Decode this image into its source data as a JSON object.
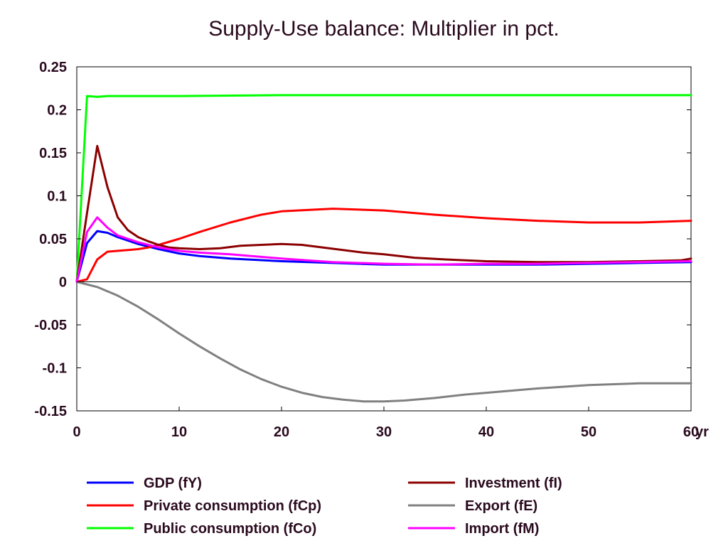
{
  "chart_data": {
    "type": "line",
    "title": "Supply-Use balance: Multiplier in pct.",
    "x_unit_label": "yr",
    "xlim": [
      0,
      60
    ],
    "ylim": [
      -0.15,
      0.25
    ],
    "x_ticks": [
      0,
      10,
      20,
      30,
      40,
      50,
      60
    ],
    "x_tick_labels": [
      "0",
      "10",
      "20",
      "30",
      "40",
      "50",
      "60"
    ],
    "y_ticks": [
      0.25,
      0.2,
      0.15,
      0.1,
      0.05,
      0,
      -0.05,
      -0.1,
      -0.15
    ],
    "y_tick_labels": [
      "0.25",
      "0.2",
      "0.15",
      "0.1",
      "0.05",
      "0",
      "-0.05",
      "-0.1",
      "-0.15"
    ],
    "grid": false,
    "zero_line": true,
    "legend_position": "bottom",
    "series": [
      {
        "name": "GDP (fY)",
        "color": "#0000ff",
        "x": [
          0,
          1,
          2,
          3,
          4,
          5,
          6,
          8,
          10,
          12,
          15,
          20,
          25,
          30,
          35,
          40,
          45,
          50,
          55,
          60
        ],
        "y": [
          0,
          0.045,
          0.059,
          0.057,
          0.052,
          0.048,
          0.044,
          0.038,
          0.033,
          0.03,
          0.027,
          0.024,
          0.022,
          0.02,
          0.02,
          0.02,
          0.02,
          0.021,
          0.022,
          0.023
        ]
      },
      {
        "name": "Private consumption (fCp)",
        "color": "#ff0000",
        "x": [
          0,
          1,
          2,
          3,
          4,
          5,
          6,
          7,
          8,
          10,
          12,
          15,
          18,
          20,
          25,
          30,
          35,
          40,
          45,
          50,
          55,
          60
        ],
        "y": [
          0,
          0.003,
          0.026,
          0.035,
          0.036,
          0.037,
          0.038,
          0.04,
          0.043,
          0.05,
          0.058,
          0.069,
          0.078,
          0.082,
          0.085,
          0.083,
          0.078,
          0.074,
          0.071,
          0.069,
          0.069,
          0.071
        ]
      },
      {
        "name": "Public consumption (fCo)",
        "color": "#00ff00",
        "x": [
          0,
          1,
          2,
          3,
          5,
          10,
          20,
          30,
          40,
          50,
          60
        ],
        "y": [
          0,
          0.216,
          0.215,
          0.216,
          0.216,
          0.216,
          0.217,
          0.217,
          0.217,
          0.217,
          0.217
        ]
      },
      {
        "name": "Investment (fI)",
        "color": "#8b0000",
        "x": [
          0,
          1,
          2,
          3,
          4,
          5,
          6,
          7,
          8,
          9,
          10,
          12,
          14,
          16,
          18,
          20,
          22,
          24,
          26,
          28,
          30,
          33,
          36,
          40,
          45,
          50,
          55,
          59,
          60
        ],
        "y": [
          0,
          0.08,
          0.158,
          0.11,
          0.075,
          0.06,
          0.052,
          0.047,
          0.043,
          0.04,
          0.039,
          0.038,
          0.039,
          0.042,
          0.043,
          0.044,
          0.043,
          0.04,
          0.037,
          0.034,
          0.032,
          0.028,
          0.026,
          0.024,
          0.023,
          0.023,
          0.024,
          0.025,
          0.027
        ]
      },
      {
        "name": "Export (fE)",
        "color": "#808080",
        "x": [
          0,
          2,
          4,
          6,
          8,
          10,
          12,
          14,
          16,
          18,
          20,
          22,
          24,
          26,
          28,
          30,
          32,
          35,
          38,
          40,
          45,
          50,
          55,
          60
        ],
        "y": [
          0,
          -0.006,
          -0.016,
          -0.029,
          -0.044,
          -0.06,
          -0.075,
          -0.089,
          -0.102,
          -0.113,
          -0.122,
          -0.129,
          -0.134,
          -0.137,
          -0.139,
          -0.139,
          -0.138,
          -0.135,
          -0.131,
          -0.129,
          -0.124,
          -0.12,
          -0.118,
          -0.118
        ]
      },
      {
        "name": "Import (fM)",
        "color": "#ff00ff",
        "x": [
          0,
          1,
          2,
          3,
          4,
          5,
          6,
          8,
          10,
          12,
          15,
          20,
          25,
          30,
          35,
          40,
          45,
          50,
          55,
          60
        ],
        "y": [
          0,
          0.058,
          0.075,
          0.063,
          0.054,
          0.05,
          0.046,
          0.04,
          0.036,
          0.034,
          0.032,
          0.027,
          0.023,
          0.021,
          0.02,
          0.021,
          0.021,
          0.022,
          0.023,
          0.024
        ]
      }
    ]
  }
}
